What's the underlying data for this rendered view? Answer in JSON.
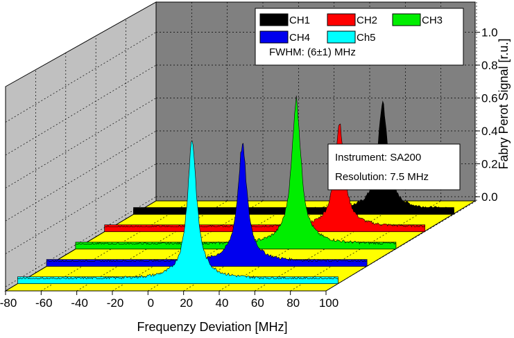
{
  "chart_data": {
    "type": "area",
    "view": "3d-waterfall",
    "xlabel": "Frequenzy Deviation [MHz]",
    "zlabel": "Fabry Perot Signal [r.u.]",
    "x_ticks": [
      "-80",
      "-60",
      "-40",
      "-20",
      "0",
      "20",
      "40",
      "60",
      "80",
      "100"
    ],
    "z_ticks": [
      "0.0",
      "0.2",
      "0.4",
      "0.6",
      "0.8",
      "1.0"
    ],
    "xlim": [
      -80,
      100
    ],
    "zlim": [
      0,
      1.1
    ],
    "grid": true,
    "series": [
      {
        "name": "CH1",
        "color": "#000000",
        "center": 60,
        "peak": 0.72,
        "fwhm": 6
      },
      {
        "name": "CH2",
        "color": "#ff0000",
        "center": 52,
        "peak": 0.7,
        "fwhm": 6
      },
      {
        "name": "CH3",
        "color": "#00ee00",
        "center": 44,
        "peak": 0.97,
        "fwhm": 6
      },
      {
        "name": "CH4",
        "color": "#0000ee",
        "center": 30,
        "peak": 0.78,
        "fwhm": 6
      },
      {
        "name": "Ch5",
        "color": "#00ffff",
        "center": 18,
        "peak": 0.93,
        "fwhm": 6
      }
    ],
    "legend": {
      "position": "top-right",
      "note": "FWHM: (6±1) MHz"
    },
    "annotation": {
      "lines": [
        "Instrument: SA200",
        "Resolution: 7.5 MHz"
      ],
      "position": "right"
    },
    "colors": {
      "back_wall": "#808080",
      "side_wall": "#c0c0c0",
      "floor": "#ffff00"
    }
  }
}
